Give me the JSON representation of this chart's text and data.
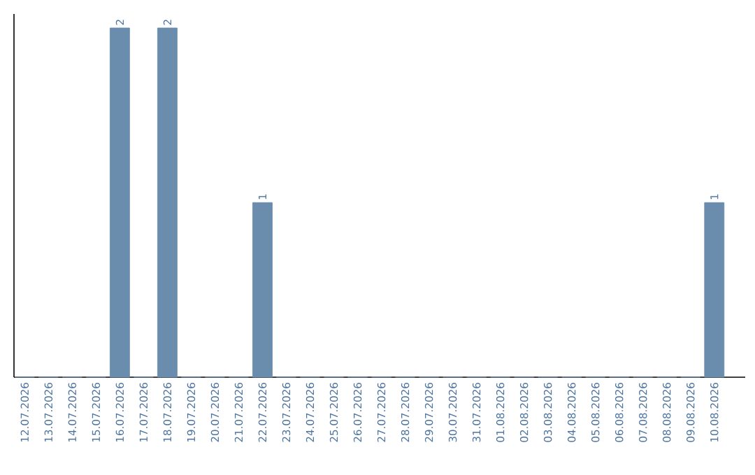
{
  "chart_data": {
    "type": "bar",
    "categories": [
      "12.07.2026",
      "13.07.2026",
      "14.07.2026",
      "15.07.2026",
      "16.07.2026",
      "17.07.2026",
      "18.07.2026",
      "19.07.2026",
      "20.07.2026",
      "21.07.2026",
      "22.07.2026",
      "23.07.2026",
      "24.07.2026",
      "25.07.2026",
      "26.07.2026",
      "27.07.2026",
      "28.07.2026",
      "29.07.2026",
      "30.07.2026",
      "31.07.2026",
      "01.08.2026",
      "02.08.2026",
      "03.08.2026",
      "04.08.2026",
      "05.08.2026",
      "06.08.2026",
      "07.08.2026",
      "08.08.2026",
      "09.08.2026",
      "10.08.2026"
    ],
    "values": [
      0,
      0,
      0,
      0,
      2,
      0,
      2,
      0,
      0,
      0,
      1,
      0,
      0,
      0,
      0,
      0,
      0,
      0,
      0,
      0,
      0,
      0,
      0,
      0,
      0,
      0,
      0,
      0,
      0,
      1
    ],
    "value_labels": [
      null,
      null,
      null,
      null,
      "2",
      null,
      "2",
      null,
      null,
      null,
      "1",
      null,
      null,
      null,
      null,
      null,
      null,
      null,
      null,
      null,
      null,
      null,
      null,
      null,
      null,
      null,
      null,
      null,
      null,
      "1"
    ],
    "color": "#6a8cad",
    "ylim": [
      0,
      2.08
    ],
    "tick_labels": "x"
  }
}
